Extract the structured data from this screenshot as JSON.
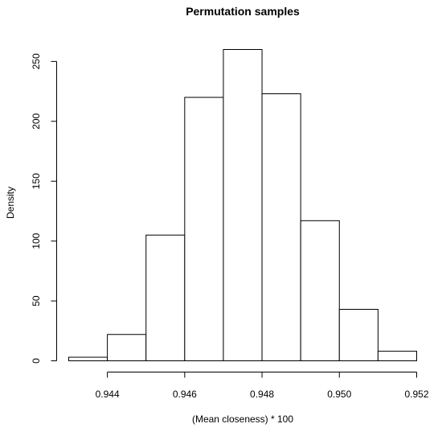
{
  "chart_data": {
    "type": "bar",
    "title": "Permutation samples",
    "xlabel": "(Mean closeness) * 100",
    "ylabel": "Density",
    "bins": [
      {
        "x0": 0.943,
        "x1": 0.944,
        "value": 3
      },
      {
        "x0": 0.944,
        "x1": 0.945,
        "value": 22
      },
      {
        "x0": 0.945,
        "x1": 0.946,
        "value": 105
      },
      {
        "x0": 0.946,
        "x1": 0.947,
        "value": 220
      },
      {
        "x0": 0.947,
        "x1": 0.948,
        "value": 260
      },
      {
        "x0": 0.948,
        "x1": 0.949,
        "value": 223
      },
      {
        "x0": 0.949,
        "x1": 0.95,
        "value": 117
      },
      {
        "x0": 0.95,
        "x1": 0.951,
        "value": 43
      },
      {
        "x0": 0.951,
        "x1": 0.952,
        "value": 8
      }
    ],
    "xlim": [
      0.943,
      0.952
    ],
    "ylim": [
      0,
      260
    ],
    "x_ticks": [
      0.944,
      0.946,
      0.948,
      0.95,
      0.952
    ],
    "x_tick_labels": [
      "0.944",
      "0.946",
      "0.948",
      "0.950",
      "0.952"
    ],
    "y_ticks": [
      0,
      50,
      100,
      150,
      200,
      250
    ],
    "y_tick_labels": [
      "0",
      "50",
      "100",
      "150",
      "200",
      "250"
    ],
    "grid": false,
    "bar_fill": "#ffffff",
    "bar_stroke": "#000000"
  }
}
